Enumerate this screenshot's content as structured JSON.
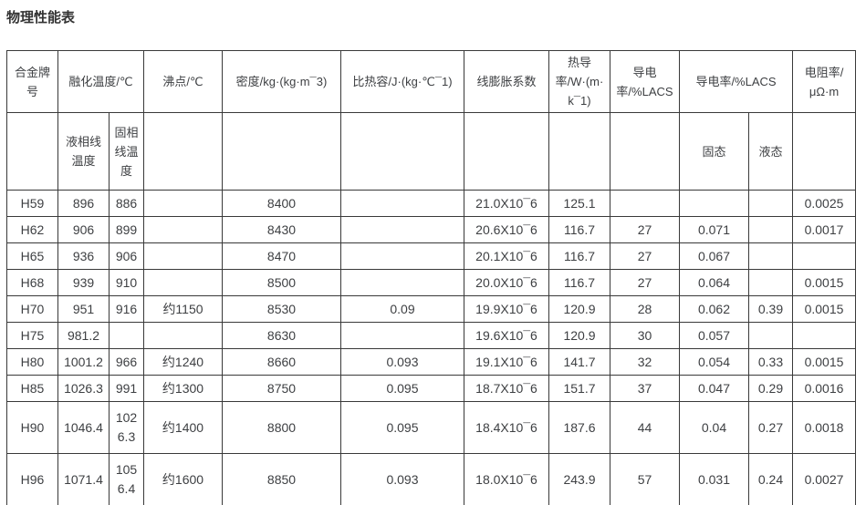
{
  "page": {
    "title": "物理性能表"
  },
  "colors": {
    "text": "#3d3f42",
    "border": "#393939",
    "title": "#333333",
    "background": "#ffffff"
  },
  "table": {
    "column_keys": [
      "alloy",
      "liquidus-temp",
      "solidus-temp",
      "boiling-point",
      "density",
      "specific-heat",
      "linear-expansion",
      "thermal-conductivity",
      "conductivity",
      "conductivity-solid",
      "conductivity-liquid",
      "resistivity"
    ],
    "headers": {
      "alloy": "合金牌号",
      "melting": "融化温度/℃",
      "liquidus": "液相线温度",
      "solidus": "固相线温度",
      "boiling": "沸点/℃",
      "density": "密度/kg·(kg·m¯3)",
      "specific_heat": "比热容/J·(kg·℃¯1)",
      "expansion": "线膨胀系数",
      "thermal_conductivity": "热导率/W·(m·k¯1)",
      "conductivity": "导电率/%LACS",
      "conductivity_group": "导电率/%LACS",
      "solid_state": "固态",
      "liquid_state": "液态",
      "resistivity": "电阻率/μΩ·m"
    },
    "rows": [
      [
        "H59",
        "896",
        "886",
        "",
        "8400",
        "",
        "21.0X10¯6",
        "125.1",
        "",
        "",
        "",
        "0.0025"
      ],
      [
        "H62",
        "906",
        "899",
        "",
        "8430",
        "",
        "20.6X10¯6",
        "116.7",
        "27",
        "0.071",
        "",
        "0.0017"
      ],
      [
        "H65",
        "936",
        "906",
        "",
        "8470",
        "",
        "20.1X10¯6",
        "116.7",
        "27",
        "0.067",
        "",
        ""
      ],
      [
        "H68",
        "939",
        "910",
        "",
        "8500",
        "",
        "20.0X10¯6",
        "116.7",
        "27",
        "0.064",
        "",
        "0.0015"
      ],
      [
        "H70",
        "951",
        "916",
        "约1150",
        "8530",
        "0.09",
        "19.9X10¯6",
        "120.9",
        "28",
        "0.062",
        "0.39",
        "0.0015"
      ],
      [
        "H75",
        "981.2",
        "",
        "",
        "8630",
        "",
        "19.6X10¯6",
        "120.9",
        "30",
        "0.057",
        "",
        ""
      ],
      [
        "H80",
        "1001.2",
        "966",
        "约1240",
        "8660",
        "0.093",
        "19.1X10¯6",
        "141.7",
        "32",
        "0.054",
        "0.33",
        "0.0015"
      ],
      [
        "H85",
        "1026.3",
        "991",
        "约1300",
        "8750",
        "0.095",
        "18.7X10¯6",
        "151.7",
        "37",
        "0.047",
        "0.29",
        "0.0016"
      ],
      [
        "H90",
        "1046.4",
        "1026.3",
        "约1400",
        "8800",
        "0.095",
        "18.4X10¯6",
        "187.6",
        "44",
        "0.04",
        "0.27",
        "0.0018"
      ],
      [
        "H96",
        "1071.4",
        "1056.4",
        "约1600",
        "8850",
        "0.093",
        "18.0X10¯6",
        "243.9",
        "57",
        "0.031",
        "0.24",
        "0.0027"
      ]
    ]
  }
}
